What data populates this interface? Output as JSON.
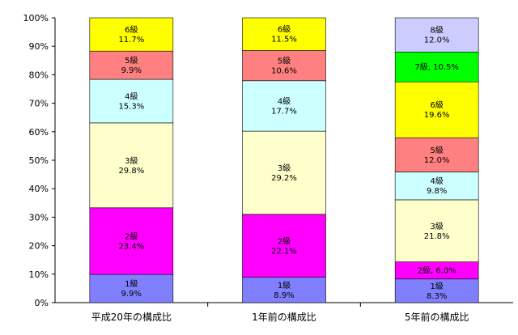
{
  "chart_data": {
    "type": "bar",
    "stacked": true,
    "title": "",
    "xlabel": "",
    "ylabel": "",
    "ylim": [
      0,
      100
    ],
    "y_ticks": [
      "0%",
      "10%",
      "20%",
      "30%",
      "40%",
      "50%",
      "60%",
      "70%",
      "80%",
      "90%",
      "100%"
    ],
    "grid": false,
    "legend": "none",
    "categories": [
      "平成20年の構成比",
      "1年前の構成比",
      "5年前の構成比"
    ],
    "series": [
      {
        "name": "1級",
        "color": "#8080ff",
        "values": [
          9.9,
          8.9,
          8.3
        ],
        "labels": [
          [
            "1級",
            "9.9%"
          ],
          [
            "1級",
            "8.9%"
          ],
          [
            "1級",
            "8.3%"
          ]
        ]
      },
      {
        "name": "2級",
        "color": "#ff00ff",
        "values": [
          23.4,
          22.1,
          6.0
        ],
        "labels": [
          [
            "2級",
            "23.4%"
          ],
          [
            "2級",
            "22.1%"
          ],
          [
            "2級, 6.0%"
          ]
        ]
      },
      {
        "name": "3級",
        "color": "#ffffcc",
        "values": [
          29.8,
          29.2,
          21.8
        ],
        "labels": [
          [
            "3級",
            "29.8%"
          ],
          [
            "3級",
            "29.2%"
          ],
          [
            "3級",
            "21.8%"
          ]
        ]
      },
      {
        "name": "4級",
        "color": "#ccffff",
        "values": [
          15.3,
          17.7,
          9.8
        ],
        "labels": [
          [
            "4級",
            "15.3%"
          ],
          [
            "4級",
            "17.7%"
          ],
          [
            "4級",
            "9.8%"
          ]
        ]
      },
      {
        "name": "5級",
        "color": "#ff8080",
        "values": [
          9.9,
          10.6,
          12.0
        ],
        "labels": [
          [
            "5級",
            "9.9%"
          ],
          [
            "5級",
            "10.6%"
          ],
          [
            "5級",
            "12.0%"
          ]
        ]
      },
      {
        "name": "6級",
        "color": "#ffff00",
        "values": [
          11.7,
          11.5,
          19.6
        ],
        "labels": [
          [
            "6級",
            "11.7%"
          ],
          [
            "6級",
            "11.5%"
          ],
          [
            "6級",
            "19.6%"
          ]
        ]
      },
      {
        "name": "7級",
        "color": "#00ff00",
        "values": [
          0,
          0,
          10.5
        ],
        "labels": [
          [],
          [],
          [
            "7級, 10.5%"
          ]
        ]
      },
      {
        "name": "8級",
        "color": "#ccccff",
        "values": [
          0,
          0,
          12.0
        ],
        "labels": [
          [],
          [],
          [
            "8級",
            "12.0%"
          ]
        ]
      }
    ]
  }
}
